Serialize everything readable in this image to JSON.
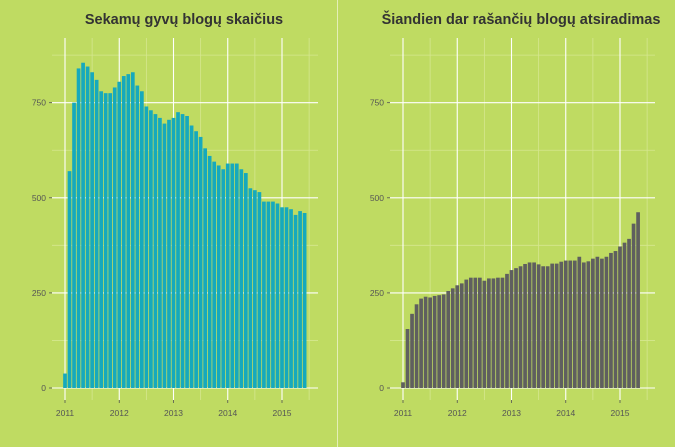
{
  "colors": {
    "background": "#bfdb62",
    "grid_major": "#ffffff",
    "grid_minor": "#d5e78f",
    "tick_text": "#555555",
    "title_text": "#333333",
    "left_bar": "#16a9bd",
    "right_bar": "#5f5f5f"
  },
  "chart_data": [
    {
      "type": "bar",
      "title": "Sekamų gyvų blogų skaičius",
      "xlabel": "",
      "ylabel": "",
      "x_ticks": [
        "2011",
        "2012",
        "2013",
        "2014",
        "2015"
      ],
      "y_ticks": [
        "0",
        "250",
        "500",
        "750"
      ],
      "ylim": [
        0,
        920
      ],
      "grid": true,
      "bar_color": "#16a9bd",
      "start": "2011-01",
      "frequency": "monthly",
      "values": [
        38,
        570,
        750,
        840,
        855,
        845,
        830,
        810,
        780,
        775,
        775,
        790,
        805,
        820,
        825,
        830,
        795,
        780,
        740,
        730,
        720,
        710,
        695,
        705,
        710,
        725,
        720,
        715,
        690,
        675,
        660,
        630,
        610,
        595,
        585,
        575,
        590,
        590,
        590,
        575,
        565,
        525,
        520,
        515,
        490,
        490,
        490,
        485,
        475,
        475,
        470,
        455,
        465,
        460
      ]
    },
    {
      "type": "bar",
      "title": "Šiandien dar rašančių blogų atsiradimas",
      "xlabel": "",
      "ylabel": "",
      "x_ticks": [
        "2011",
        "2012",
        "2013",
        "2014",
        "2015"
      ],
      "y_ticks": [
        "0",
        "250",
        "500",
        "750"
      ],
      "ylim": [
        0,
        920
      ],
      "grid": true,
      "bar_color": "#5f5f5f",
      "start": "2011-01",
      "frequency": "monthly",
      "values": [
        15,
        155,
        195,
        220,
        235,
        240,
        238,
        242,
        244,
        246,
        255,
        262,
        270,
        275,
        285,
        290,
        290,
        290,
        282,
        288,
        288,
        290,
        290,
        300,
        310,
        315,
        320,
        326,
        330,
        330,
        325,
        320,
        320,
        327,
        327,
        332,
        335,
        335,
        335,
        345,
        330,
        333,
        340,
        345,
        340,
        345,
        355,
        360,
        372,
        382,
        392,
        432,
        462
      ]
    }
  ]
}
